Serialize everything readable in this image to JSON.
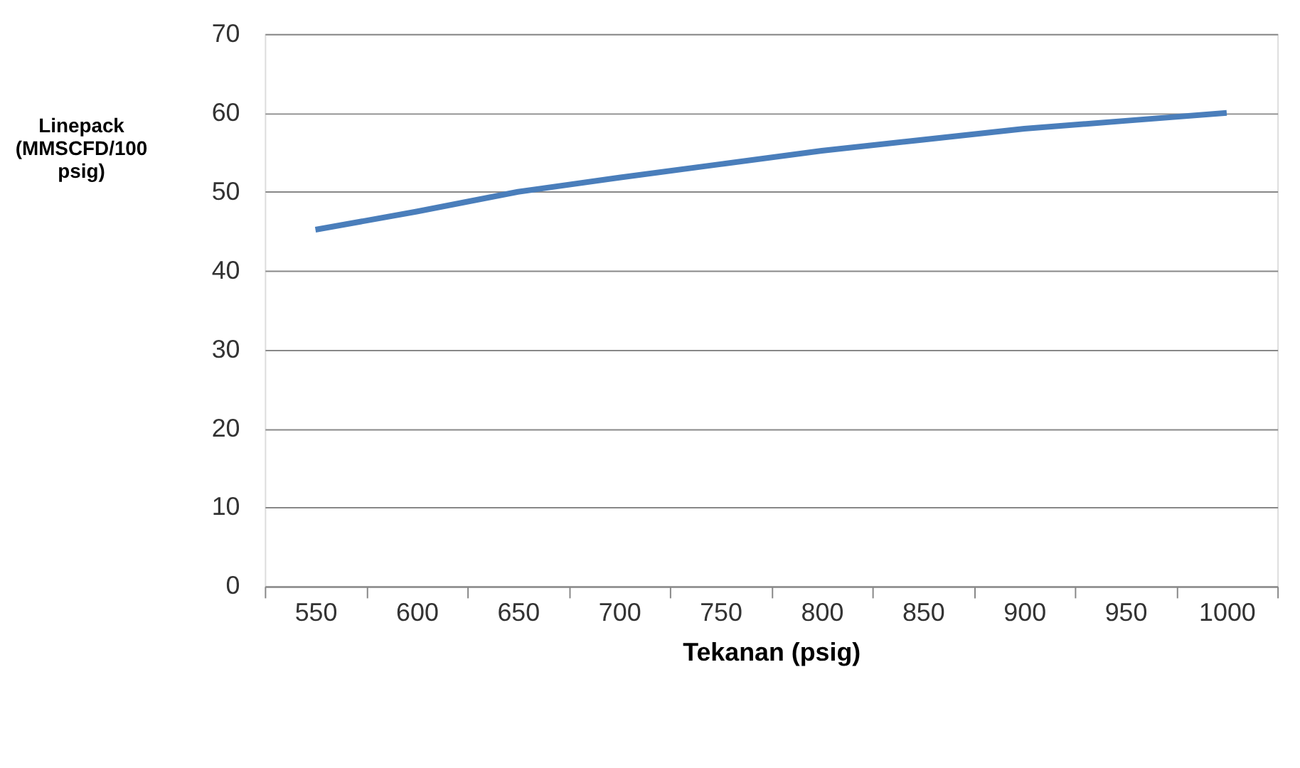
{
  "chart_data": {
    "type": "line",
    "xlabel": "Tekanan (psig)",
    "ylabel": "Linepack (MMSCFD/100 psig)",
    "categories": [
      "550",
      "600",
      "650",
      "700",
      "750",
      "800",
      "850",
      "900",
      "950",
      "1000"
    ],
    "series": [
      {
        "color": "#4a7ebb",
        "values": [
          45.2,
          47.5,
          50,
          51.8,
          53.5,
          55.2,
          56.6,
          58,
          59,
          60
        ]
      }
    ],
    "ylim": [
      0,
      70
    ],
    "yticks": [
      0,
      10,
      20,
      30,
      40,
      50,
      60,
      70
    ],
    "grid": "y",
    "legend": false,
    "marker": "none",
    "line_style": "solid"
  }
}
